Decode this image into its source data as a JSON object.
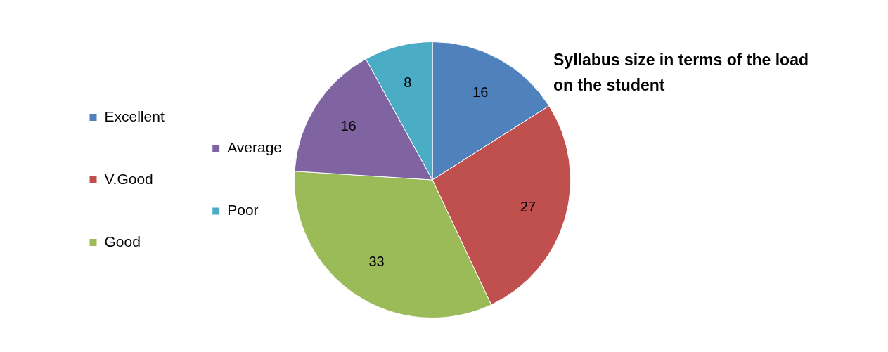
{
  "chart_data": {
    "type": "pie",
    "title": "Syllabus size in terms of the load on the student",
    "categories": [
      "Excellent",
      "V.Good",
      "Good",
      "Average",
      "Poor"
    ],
    "values": [
      16,
      27,
      33,
      16,
      8
    ],
    "colors": [
      "#4f81bd",
      "#c0504d",
      "#9bbb59",
      "#8064a2",
      "#4bacc6"
    ],
    "data_labels": true,
    "legend": "left"
  }
}
